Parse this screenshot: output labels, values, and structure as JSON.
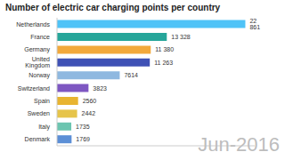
{
  "chart_data": {
    "type": "bar",
    "title": "Number of electric car charging points per country",
    "orientation": "horizontal",
    "categories": [
      "Netherlands",
      "France",
      "Germany",
      "United Kingdom",
      "Norway",
      "Switzerland",
      "Spain",
      "Sweden",
      "Italy",
      "Denmark"
    ],
    "values": [
      22861,
      13328,
      11380,
      11263,
      7614,
      3823,
      2560,
      2442,
      1735,
      1769
    ],
    "value_labels": [
      "22 861",
      "13 328",
      "11 380",
      "11 263",
      "7614",
      "3823",
      "2560",
      "2442",
      "1735",
      "1769"
    ],
    "colors": [
      "#4fc3f7",
      "#26a69a",
      "#f2a93b",
      "#3f51b5",
      "#8fb8e0",
      "#7e57c2",
      "#e8b430",
      "#e6c44a",
      "#6cc5b0",
      "#5c8fd6"
    ],
    "xlim": [
      0,
      24000
    ],
    "tick_labels": "y",
    "data_labels": true,
    "grid": false,
    "annotations": [
      "Jun-2016"
    ]
  }
}
